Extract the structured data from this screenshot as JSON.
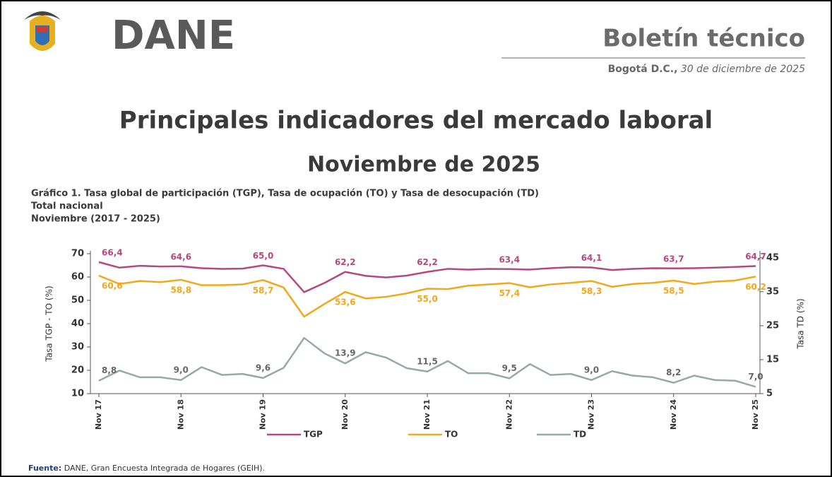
{
  "header": {
    "logo_text": "DANE",
    "bulletin": "Boletín técnico",
    "place": "Bogotá D.C.,",
    "date": "30 de diciembre de 2025"
  },
  "title": "Principales indicadores del mercado laboral",
  "subtitle": "Noviembre de 2025",
  "chart_data": {
    "type": "line",
    "title": "Gráfico 1. Tasa global de participación (TGP), Tasa de ocupación (TO) y Tasa de desocupación (TD)",
    "subtitle": [
      "Total nacional",
      "Noviembre (2017 - 2025)"
    ],
    "ylabel": "Tasa TGP - TO (%)",
    "y2label": "Tasa TD (%)",
    "categories": [
      "Nov 17",
      null,
      null,
      null,
      "Nov 18",
      null,
      null,
      null,
      "Nov 19",
      null,
      null,
      null,
      "Nov 20",
      null,
      null,
      null,
      "Nov 21",
      null,
      null,
      null,
      "Nov 22",
      null,
      null,
      null,
      "Nov 23",
      null,
      null,
      null,
      "Nov 24",
      null,
      null,
      null,
      "Nov 25"
    ],
    "ylim": [
      10,
      70
    ],
    "yticks": [
      10,
      20,
      30,
      40,
      50,
      60,
      70
    ],
    "y2lim": [
      5,
      46.2
    ],
    "y2ticks": [
      5,
      15,
      25,
      35,
      45
    ],
    "series": [
      {
        "name": "TGP",
        "color": "#b5487f",
        "values": [
          66.4,
          64.0,
          64.8,
          64.5,
          64.6,
          63.8,
          63.5,
          63.6,
          65.0,
          63.5,
          53.5,
          57.5,
          62.2,
          60.5,
          59.8,
          60.6,
          62.2,
          63.5,
          63.2,
          63.5,
          63.4,
          63.2,
          63.8,
          64.2,
          64.1,
          63.0,
          63.5,
          63.8,
          63.7,
          63.8,
          64.0,
          64.3,
          64.7
        ],
        "value_labels": [
          "66,4",
          null,
          null,
          null,
          "64,6",
          null,
          null,
          null,
          "65,0",
          null,
          null,
          null,
          "62,2",
          null,
          null,
          null,
          "62,2",
          null,
          null,
          null,
          "63,4",
          null,
          null,
          null,
          "64,1",
          null,
          null,
          null,
          "63,7",
          null,
          null,
          null,
          "64,7"
        ]
      },
      {
        "name": "TO",
        "color": "#f0a81c",
        "values": [
          60.6,
          57.0,
          58.3,
          57.8,
          58.8,
          56.5,
          56.5,
          56.8,
          58.7,
          55.5,
          43.0,
          48.5,
          53.6,
          50.8,
          51.5,
          53.0,
          55.0,
          54.8,
          56.3,
          56.8,
          57.4,
          55.6,
          56.8,
          57.5,
          58.3,
          55.8,
          57.0,
          57.5,
          58.5,
          57.0,
          58.0,
          58.5,
          60.2
        ],
        "value_labels": [
          "60,6",
          null,
          null,
          null,
          "58,8",
          null,
          null,
          null,
          "58,7",
          null,
          null,
          null,
          "53,6",
          null,
          null,
          null,
          "55,0",
          null,
          null,
          null,
          "57,4",
          null,
          null,
          null,
          "58,3",
          null,
          null,
          null,
          "58,5",
          null,
          null,
          null,
          "60,2"
        ]
      },
      {
        "name": "TD",
        "color": "#95aaa8",
        "axis": "y2",
        "values": [
          8.8,
          11.8,
          9.8,
          9.8,
          9.0,
          12.8,
          10.5,
          10.8,
          9.6,
          12.6,
          21.4,
          16.8,
          13.9,
          17.2,
          15.6,
          12.5,
          11.5,
          14.6,
          11.0,
          11.0,
          9.5,
          13.7,
          10.5,
          10.8,
          9.0,
          11.6,
          10.3,
          9.8,
          8.2,
          10.3,
          9.0,
          8.8,
          7.0
        ],
        "value_labels": [
          "8,8",
          null,
          null,
          null,
          "9,0",
          null,
          null,
          null,
          "9,6",
          null,
          null,
          null,
          "13,9",
          null,
          null,
          null,
          "11,5",
          null,
          null,
          null,
          "9,5",
          null,
          null,
          null,
          "9,0",
          null,
          null,
          null,
          "8,2",
          null,
          null,
          null,
          "7,0"
        ]
      }
    ]
  },
  "source": {
    "label": "Fuente:",
    "text": "DANE, Gran Encuesta Integrada de Hogares (GEIH)."
  }
}
